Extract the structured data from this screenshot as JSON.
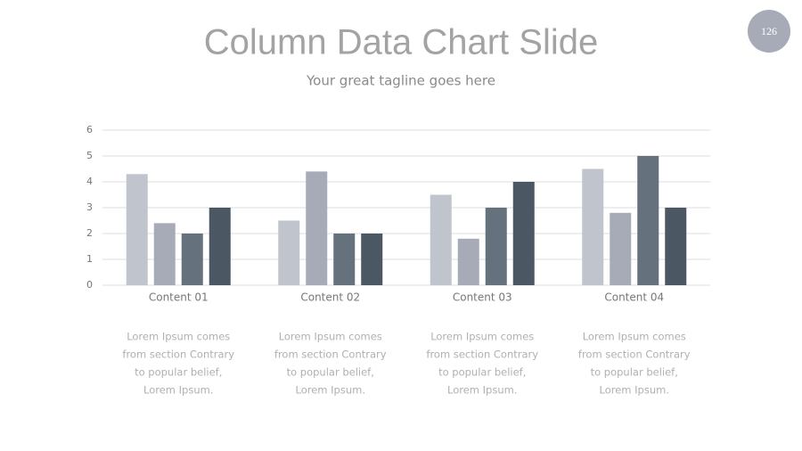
{
  "page_number": "126",
  "chart_data": {
    "type": "bar",
    "title": "Column Data Chart Slide",
    "subtitle": "Your great tagline goes here",
    "categories": [
      "Content 01",
      "Content 02",
      "Content 03",
      "Content 04"
    ],
    "series": [
      {
        "color": "#c0c4cc",
        "values": [
          4.3,
          2.5,
          3.5,
          4.5
        ]
      },
      {
        "color": "#a7abb7",
        "values": [
          2.4,
          4.4,
          1.8,
          2.8
        ]
      },
      {
        "color": "#65717c",
        "values": [
          2.0,
          2.0,
          3.0,
          5.0
        ]
      },
      {
        "color": "#4b5763",
        "values": [
          3.0,
          2.0,
          4.0,
          3.0
        ]
      }
    ],
    "ylim": [
      0,
      6
    ],
    "yticks": [
      0,
      1,
      2,
      3,
      4,
      5,
      6
    ],
    "grid": true
  },
  "captions": [
    [
      "Lorem Ipsum comes",
      "from section Contrary",
      "to popular belief,",
      "Lorem Ipsum."
    ],
    [
      "Lorem Ipsum comes",
      "from section Contrary",
      "to popular belief,",
      "Lorem Ipsum."
    ],
    [
      "Lorem Ipsum comes",
      "from section Contrary",
      "to popular belief,",
      "Lorem Ipsum."
    ],
    [
      "Lorem Ipsum comes",
      "from section Contrary",
      "to popular belief,",
      "Lorem Ipsum."
    ]
  ]
}
